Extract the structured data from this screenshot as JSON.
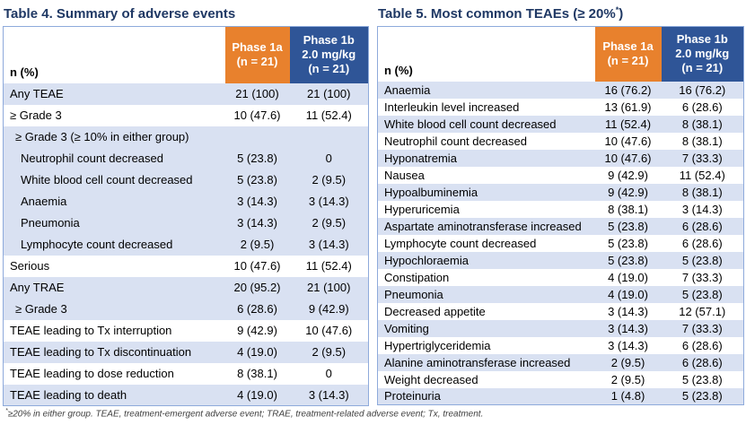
{
  "colors": {
    "phase1a_orange": "#E8812D",
    "phase1b_blue": "#2F5597",
    "row_shade_blue": "#D9E1F2",
    "table_border": "#8EAADB",
    "title_navy": "#1F3864"
  },
  "footnote": {
    "sup": "*",
    "text": "≥20% in either group. TEAE, treatment-emergent adverse event; TRAE, treatment-related adverse event; Tx, treatment."
  },
  "tables": [
    {
      "title_pre": "Table 4. Summary of adverse events",
      "title_sup": "",
      "title_post": "",
      "corner_label": "n (%)",
      "col_phase1a_lines": [
        "Phase 1a",
        "(n = 21)"
      ],
      "col_phase1b_lines": [
        "Phase 1b",
        "2.0 mg/kg",
        "(n = 21)"
      ],
      "rows": [
        {
          "label": "Any TEAE",
          "v1": "21 (100)",
          "v2": "21 (100)",
          "shade": true,
          "indent": 0
        },
        {
          "label": "≥ Grade 3",
          "v1": "10 (47.6)",
          "v2": "11 (52.4)",
          "shade": false,
          "indent": 0
        },
        {
          "label": "≥ Grade 3 (≥ 10% in either group)",
          "v1": "",
          "v2": "",
          "shade": true,
          "indent": 1
        },
        {
          "label": "Neutrophil count decreased",
          "v1": "5 (23.8)",
          "v2": "0",
          "shade": true,
          "indent": 2
        },
        {
          "label": "White blood cell count decreased",
          "v1": "5 (23.8)",
          "v2": "2 (9.5)",
          "shade": true,
          "indent": 2
        },
        {
          "label": "Anaemia",
          "v1": "3 (14.3)",
          "v2": "3 (14.3)",
          "shade": true,
          "indent": 2
        },
        {
          "label": "Pneumonia",
          "v1": "3 (14.3)",
          "v2": "2 (9.5)",
          "shade": true,
          "indent": 2
        },
        {
          "label": "Lymphocyte count decreased",
          "v1": "2 (9.5)",
          "v2": "3 (14.3)",
          "shade": true,
          "indent": 2
        },
        {
          "label": "Serious",
          "v1": "10 (47.6)",
          "v2": "11 (52.4)",
          "shade": false,
          "indent": 0
        },
        {
          "label": "Any TRAE",
          "v1": "20 (95.2)",
          "v2": "21 (100)",
          "shade": true,
          "indent": 0
        },
        {
          "label": "≥ Grade 3",
          "v1": "6 (28.6)",
          "v2": "9 (42.9)",
          "shade": true,
          "indent": 1
        },
        {
          "label": "TEAE leading to Tx interruption",
          "v1": "9 (42.9)",
          "v2": "10 (47.6)",
          "shade": false,
          "indent": 0
        },
        {
          "label": "TEAE leading to Tx discontinuation",
          "v1": "4 (19.0)",
          "v2": "2 (9.5)",
          "shade": true,
          "indent": 0
        },
        {
          "label": "TEAE leading to dose reduction",
          "v1": "8 (38.1)",
          "v2": "0",
          "shade": false,
          "indent": 0
        },
        {
          "label": "TEAE leading to death",
          "v1": "4 (19.0)",
          "v2": "3 (14.3)",
          "shade": true,
          "indent": 0
        }
      ]
    },
    {
      "title_pre": "Table 5. Most common TEAEs (≥ 20%",
      "title_sup": "*",
      "title_post": ")",
      "corner_label": "n (%)",
      "col_phase1a_lines": [
        "Phase 1a",
        "(n = 21)"
      ],
      "col_phase1b_lines": [
        "Phase 1b",
        "2.0 mg/kg",
        "(n = 21)"
      ],
      "rows": [
        {
          "label": "Anaemia",
          "v1": "16 (76.2)",
          "v2": "16 (76.2)",
          "shade": true,
          "indent": 0
        },
        {
          "label": "Interleukin level increased",
          "v1": "13 (61.9)",
          "v2": "6 (28.6)",
          "shade": false,
          "indent": 0
        },
        {
          "label": "White blood cell count decreased",
          "v1": "11 (52.4)",
          "v2": "8 (38.1)",
          "shade": true,
          "indent": 0
        },
        {
          "label": "Neutrophil count decreased",
          "v1": "10 (47.6)",
          "v2": "8 (38.1)",
          "shade": false,
          "indent": 0
        },
        {
          "label": "Hyponatremia",
          "v1": "10 (47.6)",
          "v2": "7 (33.3)",
          "shade": true,
          "indent": 0
        },
        {
          "label": "Nausea",
          "v1": "9 (42.9)",
          "v2": "11 (52.4)",
          "shade": false,
          "indent": 0
        },
        {
          "label": "Hypoalbuminemia",
          "v1": "9 (42.9)",
          "v2": "8 (38.1)",
          "shade": true,
          "indent": 0
        },
        {
          "label": "Hyperuricemia",
          "v1": "8 (38.1)",
          "v2": "3 (14.3)",
          "shade": false,
          "indent": 0
        },
        {
          "label": "Aspartate aminotransferase increased",
          "v1": "5 (23.8)",
          "v2": "6 (28.6)",
          "shade": true,
          "indent": 0
        },
        {
          "label": "Lymphocyte count decreased",
          "v1": "5 (23.8)",
          "v2": "6 (28.6)",
          "shade": false,
          "indent": 0
        },
        {
          "label": "Hypochloraemia",
          "v1": "5 (23.8)",
          "v2": "5 (23.8)",
          "shade": true,
          "indent": 0
        },
        {
          "label": "Constipation",
          "v1": "4 (19.0)",
          "v2": "7 (33.3)",
          "shade": false,
          "indent": 0
        },
        {
          "label": "Pneumonia",
          "v1": "4 (19.0)",
          "v2": "5 (23.8)",
          "shade": true,
          "indent": 0
        },
        {
          "label": "Decreased appetite",
          "v1": "3 (14.3)",
          "v2": "12 (57.1)",
          "shade": false,
          "indent": 0
        },
        {
          "label": "Vomiting",
          "v1": "3 (14.3)",
          "v2": "7 (33.3)",
          "shade": true,
          "indent": 0
        },
        {
          "label": "Hypertriglyceridemia",
          "v1": "3 (14.3)",
          "v2": "6 (28.6)",
          "shade": false,
          "indent": 0
        },
        {
          "label": "Alanine aminotransferase increased",
          "v1": "2 (9.5)",
          "v2": "6 (28.6)",
          "shade": true,
          "indent": 0
        },
        {
          "label": "Weight decreased",
          "v1": "2 (9.5)",
          "v2": "5 (23.8)",
          "shade": false,
          "indent": 0
        },
        {
          "label": "Proteinuria",
          "v1": "1 (4.8)",
          "v2": "5 (23.8)",
          "shade": true,
          "indent": 0
        }
      ]
    }
  ]
}
